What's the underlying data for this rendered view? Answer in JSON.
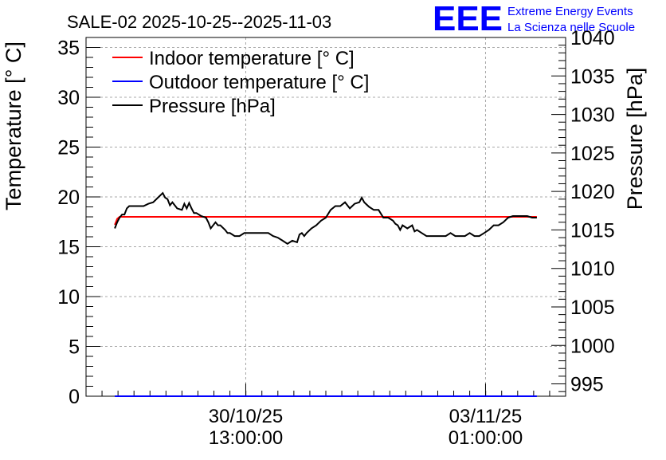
{
  "chart_data": {
    "type": "line",
    "title": "SALE-02 2025-10-25--2025-11-03",
    "logo": {
      "letters": "EEE",
      "line1": "Extreme Energy Events",
      "line2": "La Scienza nelle Scuole",
      "color": "#0000ff"
    },
    "x_axis": {
      "tick_labels": [
        {
          "line1": "30/10/25",
          "line2": "13:00:00",
          "pos": 0.333
        },
        {
          "line1": "03/11/25",
          "line2": "01:00:00",
          "pos": 0.833
        }
      ],
      "range": [
        0,
        1
      ]
    },
    "y_axis_left": {
      "label": "Temperature [° C]",
      "range": [
        0,
        36
      ],
      "ticks": [
        0,
        5,
        10,
        15,
        20,
        25,
        30,
        35
      ],
      "tick_labels": [
        "0",
        "5",
        "10",
        "15",
        "20",
        "25",
        "30",
        "35"
      ]
    },
    "y_axis_right": {
      "label": "Pressure [hPa]",
      "range": [
        993.4,
        1040
      ],
      "ticks": [
        995,
        1000,
        1005,
        1010,
        1015,
        1020,
        1025,
        1030,
        1035,
        1040
      ],
      "tick_labels": [
        "995",
        "1000",
        "1005",
        "1010",
        "1015",
        "1020",
        "1025",
        "1030",
        "1035",
        "1040"
      ]
    },
    "grid": true,
    "legend": {
      "placement": "top-left",
      "entries": [
        {
          "label": "Indoor temperature [° C]",
          "color": "#ff0000"
        },
        {
          "label": "Outdoor temperature [° C]",
          "color": "#0000ff"
        },
        {
          "label": "Pressure [hPa]",
          "color": "#000000"
        }
      ]
    },
    "series": [
      {
        "name": "Indoor temperature [° C]",
        "axis": "left",
        "color": "#ff0000",
        "x": [
          0.06,
          0.065,
          0.07,
          0.1,
          0.3,
          0.5,
          0.7,
          0.9,
          0.94
        ],
        "values": [
          17.2,
          17.8,
          18.0,
          18.0,
          18.0,
          18.0,
          18.0,
          18.0,
          18.0
        ]
      },
      {
        "name": "Outdoor temperature [° C]",
        "axis": "left",
        "color": "#0000ff",
        "x": [
          0.06,
          0.94
        ],
        "values": [
          0,
          0
        ]
      },
      {
        "name": "Pressure [hPa]",
        "axis": "right",
        "color": "#000000",
        "x": [
          0.06,
          0.065,
          0.07,
          0.075,
          0.08,
          0.085,
          0.09,
          0.1,
          0.11,
          0.12,
          0.13,
          0.14,
          0.15,
          0.16,
          0.165,
          0.17,
          0.175,
          0.18,
          0.19,
          0.2,
          0.205,
          0.21,
          0.215,
          0.22,
          0.225,
          0.23,
          0.24,
          0.25,
          0.255,
          0.26,
          0.27,
          0.275,
          0.28,
          0.29,
          0.295,
          0.3,
          0.31,
          0.32,
          0.33,
          0.34,
          0.35,
          0.36,
          0.37,
          0.38,
          0.39,
          0.4,
          0.41,
          0.42,
          0.43,
          0.44,
          0.445,
          0.45,
          0.455,
          0.46,
          0.47,
          0.48,
          0.49,
          0.5,
          0.51,
          0.52,
          0.53,
          0.54,
          0.55,
          0.56,
          0.57,
          0.575,
          0.58,
          0.59,
          0.6,
          0.61,
          0.62,
          0.63,
          0.64,
          0.645,
          0.65,
          0.655,
          0.66,
          0.67,
          0.68,
          0.685,
          0.69,
          0.7,
          0.71,
          0.72,
          0.73,
          0.74,
          0.75,
          0.76,
          0.77,
          0.78,
          0.79,
          0.8,
          0.81,
          0.82,
          0.83,
          0.84,
          0.85,
          0.86,
          0.87,
          0.88,
          0.89,
          0.9,
          0.91,
          0.92,
          0.93,
          0.94
        ],
        "values": [
          1015.2,
          1016.0,
          1016.6,
          1017.0,
          1017.0,
          1017.8,
          1018.1,
          1018.1,
          1018.1,
          1018.1,
          1018.4,
          1018.6,
          1019.2,
          1019.8,
          1019.2,
          1019.0,
          1018.2,
          1018.6,
          1017.8,
          1017.6,
          1018.4,
          1017.8,
          1018.5,
          1017.8,
          1017.2,
          1017.2,
          1016.8,
          1016.6,
          1016.0,
          1015.2,
          1016.0,
          1015.6,
          1015.6,
          1015.0,
          1014.6,
          1014.6,
          1014.2,
          1014.2,
          1014.6,
          1014.6,
          1014.6,
          1014.6,
          1014.6,
          1014.6,
          1014.2,
          1014.0,
          1013.6,
          1013.2,
          1013.6,
          1013.4,
          1014.4,
          1014.6,
          1014.2,
          1014.6,
          1015.2,
          1015.6,
          1016.2,
          1016.6,
          1017.6,
          1018.1,
          1018.1,
          1018.6,
          1017.8,
          1018.4,
          1018.6,
          1019.2,
          1018.6,
          1018.0,
          1017.6,
          1017.6,
          1016.6,
          1016.6,
          1016.2,
          1015.8,
          1015.6,
          1015.0,
          1015.6,
          1015.2,
          1015.6,
          1014.8,
          1015.0,
          1014.6,
          1014.2,
          1014.2,
          1014.2,
          1014.2,
          1014.2,
          1014.6,
          1014.2,
          1014.2,
          1014.2,
          1014.6,
          1014.2,
          1014.2,
          1014.6,
          1015.0,
          1015.6,
          1015.6,
          1016.0,
          1016.6,
          1016.8,
          1016.8,
          1016.8,
          1016.8,
          1016.6,
          1016.6
        ]
      }
    ]
  }
}
